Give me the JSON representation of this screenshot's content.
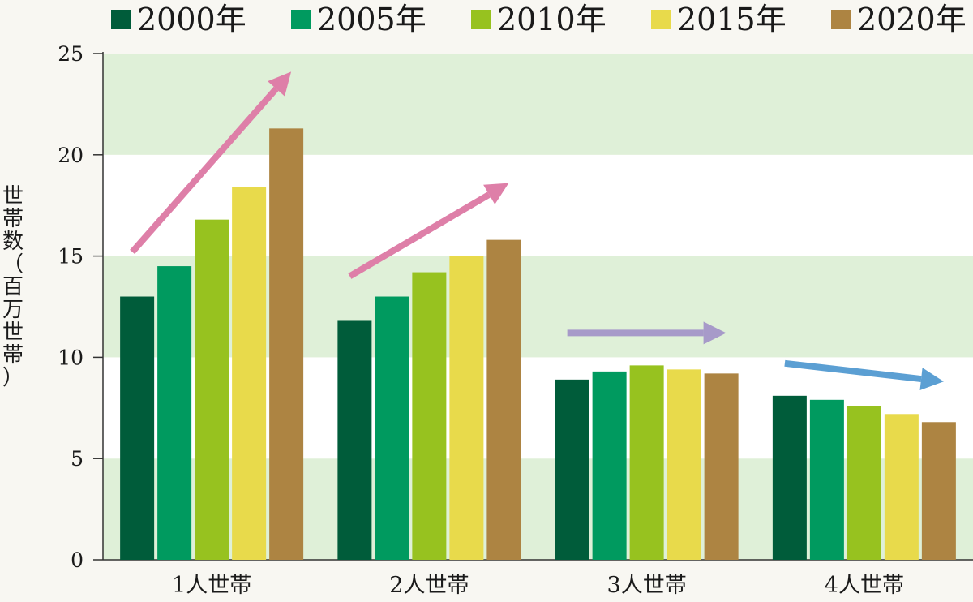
{
  "chart_data": {
    "type": "bar",
    "categories": [
      "1人世帯",
      "2人世帯",
      "3人世帯",
      "4人世帯"
    ],
    "series": [
      {
        "name": "2000年",
        "color": "#005c3a",
        "values": [
          13.0,
          11.8,
          8.9,
          8.1
        ]
      },
      {
        "name": "2005年",
        "color": "#009a5f",
        "values": [
          14.5,
          13.0,
          9.3,
          7.9
        ]
      },
      {
        "name": "2010年",
        "color": "#97c21f",
        "values": [
          16.8,
          14.2,
          9.6,
          7.6
        ]
      },
      {
        "name": "2015年",
        "color": "#e8da4b",
        "values": [
          18.4,
          15.0,
          9.4,
          7.2
        ]
      },
      {
        "name": "2020年",
        "color": "#ad8442",
        "values": [
          21.3,
          15.8,
          9.2,
          6.8
        ]
      }
    ],
    "ylabel": "世帯数（百万世帯）",
    "ylim": [
      0,
      25
    ],
    "yticks": [
      0,
      5,
      10,
      15,
      20,
      25
    ],
    "grid": "alternating horizontal bands",
    "legend": "top",
    "trend_arrows": [
      {
        "category": "1人世帯",
        "direction": "up",
        "color": "#de7fa8"
      },
      {
        "category": "2人世帯",
        "direction": "up",
        "color": "#de7fa8"
      },
      {
        "category": "3人世帯",
        "direction": "flat",
        "color": "#a79ac9"
      },
      {
        "category": "4人世帯",
        "direction": "down",
        "color": "#5b9fd3"
      }
    ],
    "band_color": "#dff0d8"
  }
}
